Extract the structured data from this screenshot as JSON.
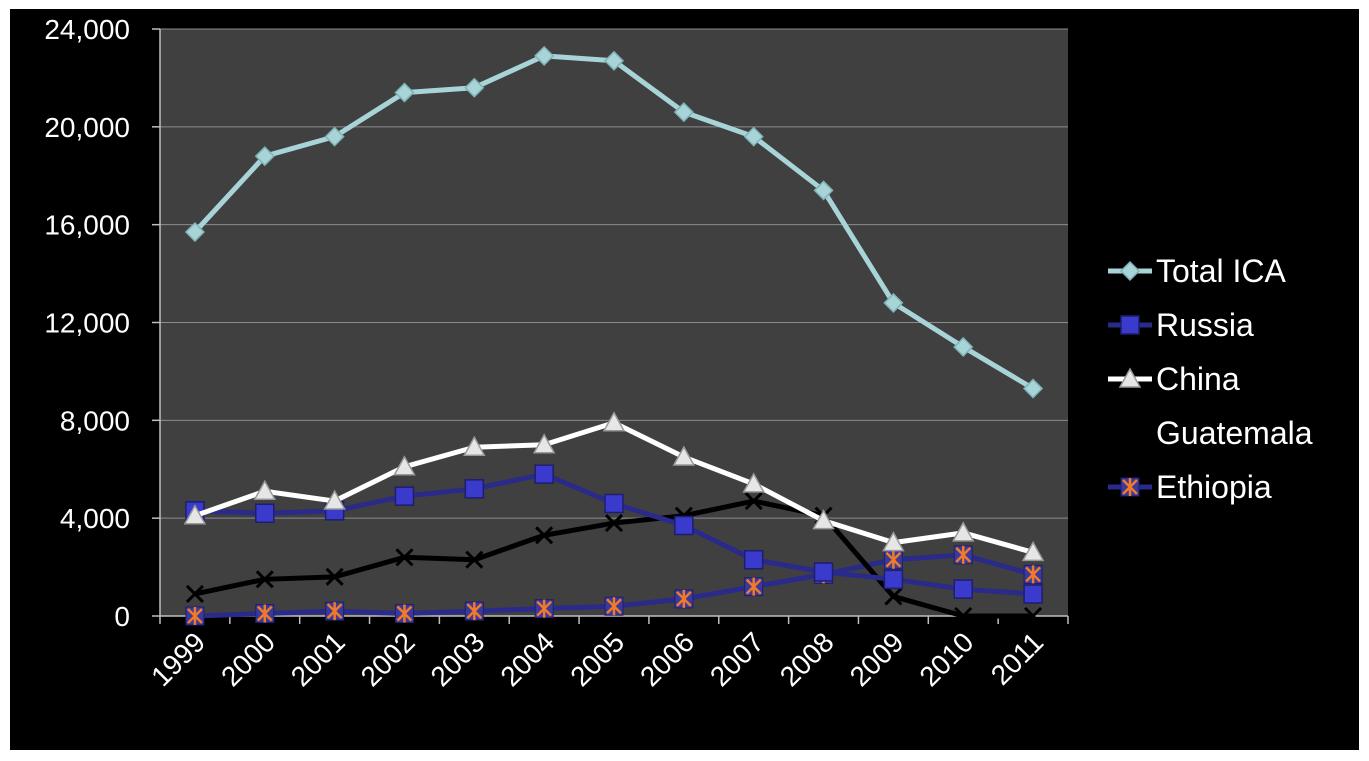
{
  "chart_data": {
    "type": "line",
    "title": "",
    "xlabel": "",
    "ylabel": "",
    "categories": [
      "1999",
      "2000",
      "2001",
      "2002",
      "2003",
      "2004",
      "2005",
      "2006",
      "2007",
      "2008",
      "2009",
      "2010",
      "2011"
    ],
    "ylim": [
      0,
      24000
    ],
    "yticks": [
      0,
      4000,
      8000,
      12000,
      16000,
      20000,
      24000
    ],
    "ytick_labels": [
      "0",
      "4,000",
      "8,000",
      "12,000",
      "16,000",
      "20,000",
      "24,000"
    ],
    "grid": true,
    "legend_position": "right",
    "series": [
      {
        "name": "Total ICA",
        "color": "#a8d4d8",
        "marker": "diamond",
        "values": [
          15700,
          18800,
          19600,
          21400,
          21600,
          22900,
          22700,
          20600,
          19600,
          17400,
          12800,
          11000,
          9300
        ]
      },
      {
        "name": "Russia",
        "color": "#2a2a8a",
        "marker": "square",
        "values": [
          4300,
          4200,
          4300,
          4900,
          5200,
          5800,
          4600,
          3700,
          2300,
          1800,
          1500,
          1100,
          900
        ]
      },
      {
        "name": "China",
        "color": "#ffffff",
        "marker": "triangle",
        "values": [
          4100,
          5100,
          4700,
          6100,
          6900,
          7000,
          7900,
          6500,
          5400,
          3900,
          3000,
          3400,
          2600
        ]
      },
      {
        "name": "Guatemala",
        "color": "#000000",
        "marker": "x",
        "values": [
          900,
          1500,
          1600,
          2400,
          2300,
          3300,
          3800,
          4100,
          4700,
          4100,
          800,
          0,
          0
        ]
      },
      {
        "name": "Ethiopia",
        "color": "#2a2a8a",
        "marker": "asterisk",
        "values": [
          0,
          100,
          200,
          100,
          200,
          300,
          400,
          700,
          1200,
          1700,
          2300,
          2500,
          1700
        ]
      }
    ]
  }
}
